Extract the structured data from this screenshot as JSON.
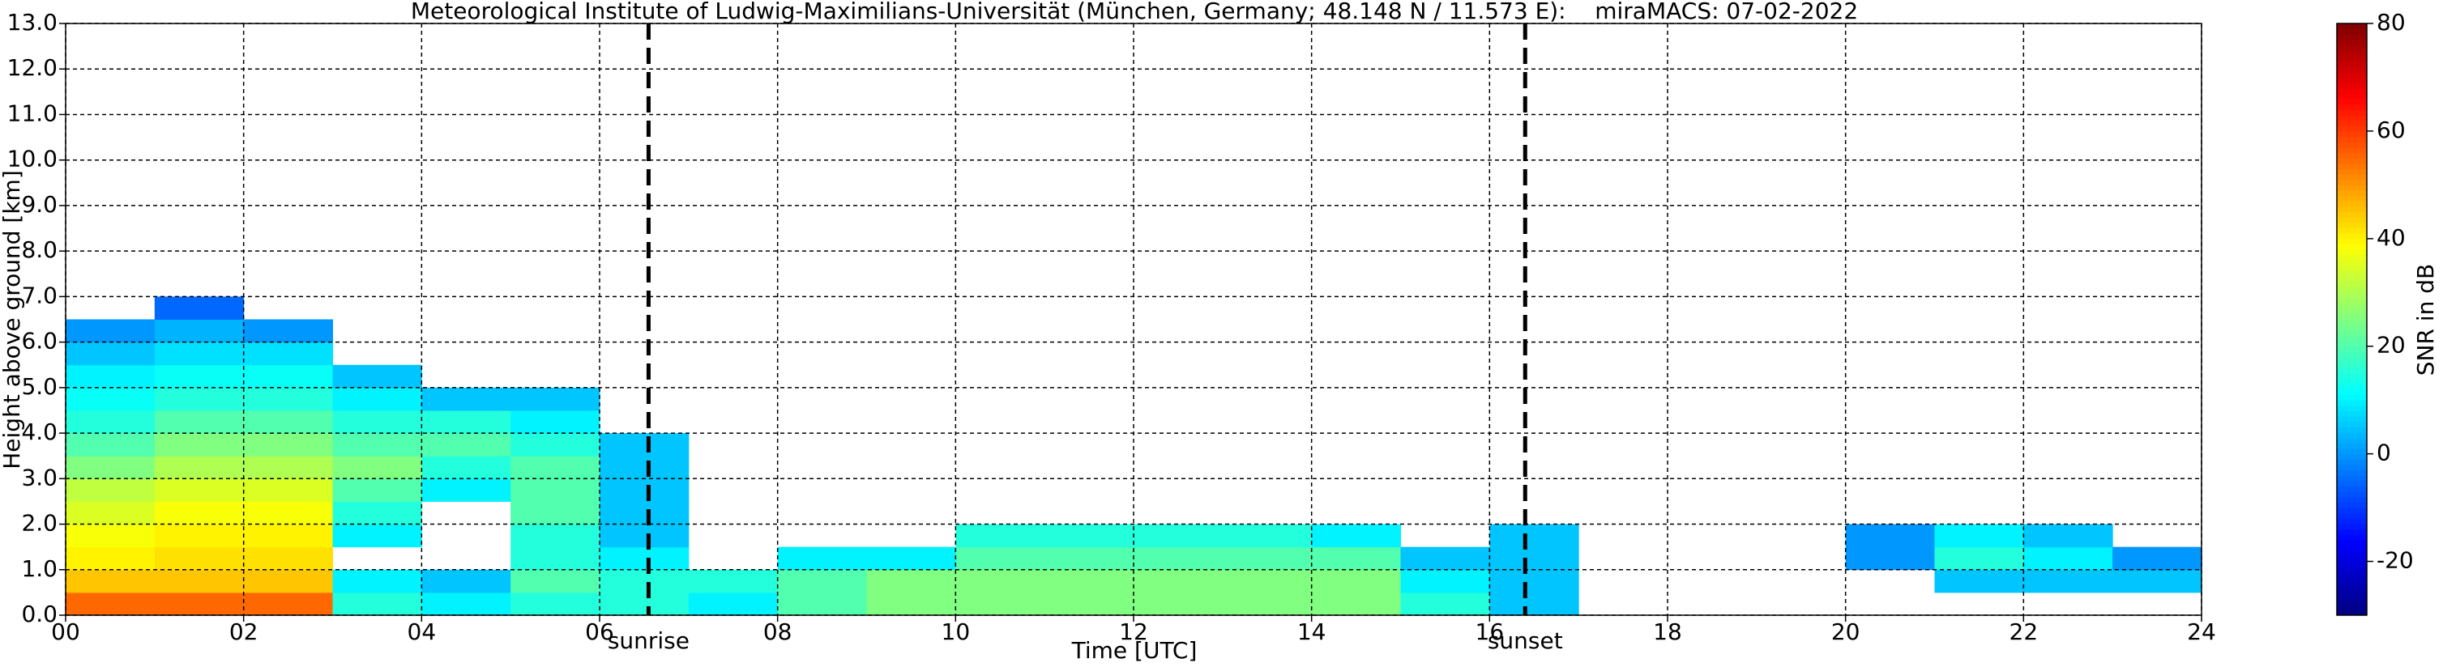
{
  "chart_data": {
    "type": "heatmap",
    "title": "Meteorological Institute of Ludwig-Maximilians-Universität (München, Germany; 48.148 N / 11.573 E):    miraMACS: 07-02-2022",
    "x_label": "Time [UTC]",
    "y_label": "Height above ground [km]",
    "colorbar_label": "SNR in dB",
    "colormap": "jet",
    "x_bins": [
      0,
      1,
      2,
      3,
      4,
      5,
      6,
      7,
      8,
      9,
      10,
      11,
      12,
      13,
      14,
      15,
      16,
      17,
      18,
      19,
      20,
      21,
      22,
      23,
      24
    ],
    "y_bins": [
      0,
      0.5,
      1,
      1.5,
      2,
      2.5,
      3,
      3.5,
      4,
      4.5,
      5,
      5.5,
      6,
      6.5,
      7
    ],
    "z": [
      [
        55,
        55,
        55,
        15,
        10,
        15,
        15,
        10,
        20,
        25,
        25,
        25,
        25,
        25,
        25,
        15,
        5,
        null,
        null,
        null,
        null,
        null,
        null,
        null
      ],
      [
        45,
        45,
        45,
        10,
        5,
        20,
        15,
        15,
        20,
        25,
        25,
        25,
        25,
        25,
        25,
        10,
        5,
        null,
        null,
        null,
        null,
        5,
        5,
        5
      ],
      [
        40,
        42,
        42,
        null,
        null,
        15,
        10,
        null,
        10,
        10,
        20,
        20,
        20,
        20,
        20,
        5,
        5,
        null,
        null,
        null,
        0,
        15,
        10,
        0
      ],
      [
        38,
        40,
        40,
        10,
        null,
        15,
        5,
        null,
        null,
        null,
        15,
        15,
        15,
        15,
        10,
        null,
        5,
        null,
        null,
        null,
        0,
        10,
        5,
        null
      ],
      [
        35,
        38,
        38,
        15,
        null,
        20,
        5,
        null,
        null,
        null,
        null,
        null,
        null,
        null,
        null,
        null,
        null,
        null,
        null,
        null,
        null,
        null,
        null,
        null
      ],
      [
        32,
        35,
        35,
        20,
        10,
        20,
        5,
        null,
        null,
        null,
        null,
        null,
        null,
        null,
        null,
        null,
        null,
        null,
        null,
        null,
        null,
        null,
        null,
        null
      ],
      [
        25,
        30,
        30,
        25,
        15,
        20,
        5,
        null,
        null,
        null,
        null,
        null,
        null,
        null,
        null,
        null,
        null,
        null,
        null,
        null,
        null,
        null,
        null,
        null
      ],
      [
        20,
        25,
        25,
        20,
        20,
        15,
        5,
        null,
        null,
        null,
        null,
        null,
        null,
        null,
        null,
        null,
        null,
        null,
        null,
        null,
        null,
        null,
        null,
        null
      ],
      [
        15,
        20,
        20,
        15,
        15,
        10,
        null,
        null,
        null,
        null,
        null,
        null,
        null,
        null,
        null,
        null,
        null,
        null,
        null,
        null,
        null,
        null,
        null,
        null
      ],
      [
        12,
        15,
        15,
        10,
        5,
        5,
        null,
        null,
        null,
        null,
        null,
        null,
        null,
        null,
        null,
        null,
        null,
        null,
        null,
        null,
        null,
        null,
        null,
        null
      ],
      [
        10,
        12,
        12,
        5,
        null,
        null,
        null,
        null,
        null,
        null,
        null,
        null,
        null,
        null,
        null,
        null,
        null,
        null,
        null,
        null,
        null,
        null,
        null,
        null
      ],
      [
        5,
        8,
        8,
        null,
        null,
        null,
        null,
        null,
        null,
        null,
        null,
        null,
        null,
        null,
        null,
        null,
        null,
        null,
        null,
        null,
        null,
        null,
        null,
        null
      ],
      [
        0,
        3,
        0,
        null,
        null,
        null,
        null,
        null,
        null,
        null,
        null,
        null,
        null,
        null,
        null,
        null,
        null,
        null,
        null,
        null,
        null,
        null,
        null,
        null
      ],
      [
        null,
        -5,
        null,
        null,
        null,
        null,
        null,
        null,
        null,
        null,
        null,
        null,
        null,
        null,
        null,
        null,
        null,
        null,
        null,
        null,
        null,
        null,
        null,
        null
      ]
    ],
    "xlim": [
      0,
      24
    ],
    "ylim": [
      0,
      13
    ],
    "xticks": [
      {
        "value": 0,
        "label": "00"
      },
      {
        "value": 2,
        "label": "02"
      },
      {
        "value": 4,
        "label": "04"
      },
      {
        "value": 6,
        "label": "06"
      },
      {
        "value": 8,
        "label": "08"
      },
      {
        "value": 10,
        "label": "10"
      },
      {
        "value": 12,
        "label": "12"
      },
      {
        "value": 14,
        "label": "14"
      },
      {
        "value": 16,
        "label": "16"
      },
      {
        "value": 18,
        "label": "18"
      },
      {
        "value": 20,
        "label": "20"
      },
      {
        "value": 22,
        "label": "22"
      },
      {
        "value": 24,
        "label": "24"
      }
    ],
    "yticks": [
      {
        "value": 0,
        "label": "0.0"
      },
      {
        "value": 1,
        "label": "1.0"
      },
      {
        "value": 2,
        "label": "2.0"
      },
      {
        "value": 3,
        "label": "3.0"
      },
      {
        "value": 4,
        "label": "4.0"
      },
      {
        "value": 5,
        "label": "5.0"
      },
      {
        "value": 6,
        "label": "6.0"
      },
      {
        "value": 7,
        "label": "7.0"
      },
      {
        "value": 8,
        "label": "8.0"
      },
      {
        "value": 9,
        "label": "9.0"
      },
      {
        "value": 10,
        "label": "10.0"
      },
      {
        "value": 11,
        "label": "11.0"
      },
      {
        "value": 12,
        "label": "12.0"
      },
      {
        "value": 13,
        "label": "13.0"
      }
    ],
    "clim": [
      -30,
      80
    ],
    "cticks": [
      -20,
      0,
      20,
      40,
      60,
      80
    ],
    "grid": true,
    "vlines": [
      {
        "x": 6.55,
        "label": "sunrise"
      },
      {
        "x": 16.4,
        "label": "sunset"
      }
    ]
  }
}
